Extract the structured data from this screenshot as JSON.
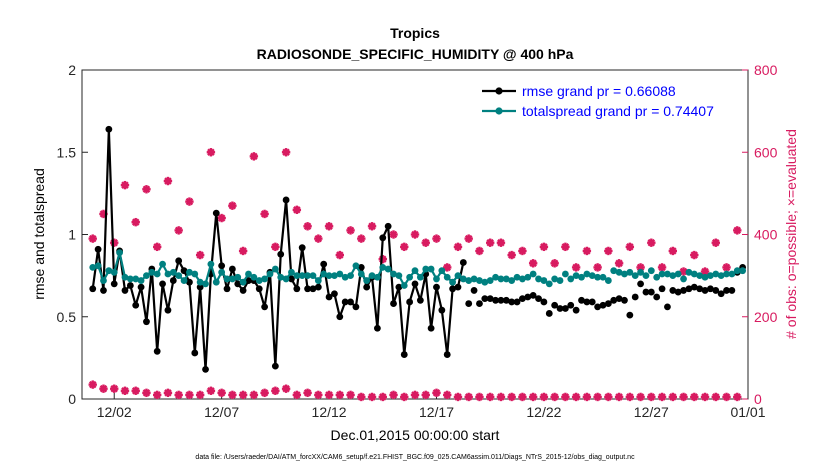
{
  "chart_data": {
    "type": "line",
    "title": "Tropics",
    "subtitle": "RADIOSONDE_SPECIFIC_HUMIDITY @ 400 hPa",
    "xlabel": "Dec.01,2015 00:00:00 start",
    "ylabel": "rmse and totalspread",
    "ylabel_right": "# of obs: o=possible; ×=evaluated",
    "footer": "data file: /Users/raeder/DAI/ATM_forcXX/CAM6_setup/f.e21.FHIST_BGC.f09_025.CAM6assim.011/Diags_NTrS_2015-12/obs_diag_output.nc",
    "xlim": [
      0.5,
      31.5
    ],
    "ylim": [
      0,
      2
    ],
    "ylim_right": [
      0,
      800
    ],
    "x_ticks": [
      {
        "x": 2,
        "label": "12/02"
      },
      {
        "x": 7,
        "label": "12/07"
      },
      {
        "x": 12,
        "label": "12/12"
      },
      {
        "x": 17,
        "label": "12/17"
      },
      {
        "x": 22,
        "label": "12/22"
      },
      {
        "x": 27,
        "label": "12/27"
      },
      {
        "x": 32,
        "label": "01/01"
      }
    ],
    "y_ticks": [
      "0",
      "0.5",
      "1",
      "1.5",
      "2"
    ],
    "y_ticks_right": [
      "0",
      "200",
      "400",
      "600",
      "800"
    ],
    "colors": {
      "rmse": "#000000",
      "spread": "#008080",
      "obs": "#d81b60",
      "legend_text": "#0000ff"
    },
    "series": [
      {
        "name": "rmse grand pr = 0.66088",
        "key": "rmse",
        "x": [
          1.0,
          1.25,
          1.5,
          1.75,
          2.0,
          2.25,
          2.5,
          2.75,
          3.0,
          3.25,
          3.5,
          3.75,
          4.0,
          4.25,
          4.5,
          4.75,
          5.0,
          5.25,
          5.5,
          5.75,
          6.0,
          6.25,
          6.5,
          6.75,
          7.0,
          7.25,
          7.5,
          7.75,
          8.0,
          8.25,
          8.5,
          8.75,
          9.0,
          9.25,
          9.5,
          9.75,
          10.0,
          10.25,
          10.5,
          10.75,
          11.0,
          11.25,
          11.5,
          11.75,
          12.0,
          12.25,
          12.5,
          12.75,
          13.0,
          13.25,
          13.5,
          13.75,
          14.0,
          14.25,
          14.5,
          14.75,
          15.0,
          15.25,
          15.5,
          15.75,
          16.0,
          16.25,
          16.5,
          16.75,
          17.0,
          17.25,
          17.5,
          17.75,
          18.0,
          18.25,
          18.5,
          18.75,
          19.0,
          19.25,
          19.5,
          19.75,
          20.0,
          20.25,
          20.5,
          20.75,
          21.0,
          21.25,
          21.5,
          21.75,
          22.0,
          22.25,
          22.5,
          22.75,
          23.0,
          23.25,
          23.5,
          23.75,
          24.0,
          24.25,
          24.5,
          24.75,
          25.0,
          25.25,
          25.5,
          25.75,
          26.0,
          26.25,
          26.5,
          26.75,
          27.0,
          27.25,
          27.5,
          27.75,
          28.0,
          28.25,
          28.5,
          28.75,
          29.0,
          29.25,
          29.5,
          29.75,
          30.0,
          30.25,
          30.5,
          30.75,
          31.0,
          31.25
        ],
        "values": [
          0.67,
          0.91,
          0.66,
          1.64,
          0.7,
          0.9,
          0.66,
          0.69,
          0.57,
          0.68,
          0.47,
          0.79,
          0.29,
          0.7,
          0.54,
          0.72,
          0.84,
          0.78,
          0.71,
          0.28,
          0.68,
          0.18,
          0.76,
          1.13,
          0.81,
          0.67,
          0.79,
          0.7,
          0.66,
          0.72,
          0.72,
          0.67,
          0.56,
          0.77,
          0.2,
          0.88,
          1.21,
          0.73,
          0.67,
          0.92,
          0.67,
          0.67,
          0.68,
          0.82,
          0.62,
          0.64,
          0.5,
          0.59,
          0.59,
          0.56,
          0.8,
          0.68,
          0.74,
          0.43,
          0.98,
          1.05,
          0.58,
          0.68,
          0.27,
          0.59,
          0.7,
          0.6,
          0.76,
          0.43,
          0.68,
          0.54,
          0.27,
          0.67,
          0.68,
          0.83,
          0.58,
          0.66,
          0.58,
          0.61,
          0.61,
          0.6,
          0.6,
          0.6,
          0.59,
          0.59,
          0.61,
          0.62,
          0.63,
          0.61,
          0.59,
          0.52,
          0.57,
          0.55,
          0.55,
          0.57,
          0.54,
          0.6,
          0.59,
          0.59,
          0.56,
          0.57,
          0.58,
          0.6,
          0.61,
          0.6,
          0.51,
          0.62,
          0.7,
          0.65,
          0.65,
          0.62,
          0.67,
          0.56,
          0.66,
          0.65,
          0.66,
          0.67,
          0.68,
          0.67,
          0.66,
          0.67,
          0.66,
          0.64,
          0.66,
          0.66,
          0.77,
          0.8
        ],
        "line_until_x": 18.25
      },
      {
        "name": "totalspread grand pr = 0.74407",
        "key": "spread",
        "x": [
          1.0,
          1.25,
          1.5,
          1.75,
          2.0,
          2.25,
          2.5,
          2.75,
          3.0,
          3.25,
          3.5,
          3.75,
          4.0,
          4.25,
          4.5,
          4.75,
          5.0,
          5.25,
          5.5,
          5.75,
          6.0,
          6.25,
          6.5,
          6.75,
          7.0,
          7.25,
          7.5,
          7.75,
          8.0,
          8.25,
          8.5,
          8.75,
          9.0,
          9.25,
          9.5,
          9.75,
          10.0,
          10.25,
          10.5,
          10.75,
          11.0,
          11.25,
          11.5,
          11.75,
          12.0,
          12.25,
          12.5,
          12.75,
          13.0,
          13.25,
          13.5,
          13.75,
          14.0,
          14.25,
          14.5,
          14.75,
          15.0,
          15.25,
          15.5,
          15.75,
          16.0,
          16.25,
          16.5,
          16.75,
          17.0,
          17.25,
          17.5,
          17.75,
          18.0,
          18.25,
          18.5,
          18.75,
          19.0,
          19.25,
          19.5,
          19.75,
          20.0,
          20.25,
          20.5,
          20.75,
          21.0,
          21.25,
          21.5,
          21.75,
          22.0,
          22.25,
          22.5,
          22.75,
          23.0,
          23.25,
          23.5,
          23.75,
          24.0,
          24.25,
          24.5,
          24.75,
          25.0,
          25.25,
          25.5,
          25.75,
          26.0,
          26.25,
          26.5,
          26.75,
          27.0,
          27.25,
          27.5,
          27.75,
          28.0,
          28.25,
          28.5,
          28.75,
          29.0,
          29.25,
          29.5,
          29.75,
          30.0,
          30.25,
          30.5,
          30.75,
          31.0,
          31.25
        ],
        "values": [
          0.8,
          0.81,
          0.72,
          0.78,
          0.77,
          0.89,
          0.74,
          0.73,
          0.73,
          0.72,
          0.75,
          0.77,
          0.76,
          0.82,
          0.76,
          0.77,
          0.75,
          0.72,
          0.77,
          0.76,
          0.71,
          0.7,
          0.82,
          0.71,
          0.77,
          0.73,
          0.73,
          0.74,
          0.71,
          0.76,
          0.74,
          0.72,
          0.73,
          0.76,
          0.79,
          0.74,
          0.73,
          0.77,
          0.75,
          0.75,
          0.75,
          0.75,
          0.72,
          0.76,
          0.75,
          0.75,
          0.76,
          0.74,
          0.75,
          0.81,
          0.76,
          0.72,
          0.75,
          0.74,
          0.8,
          0.79,
          0.76,
          0.75,
          0.69,
          0.74,
          0.78,
          0.74,
          0.79,
          0.79,
          0.73,
          0.78,
          0.74,
          0.71,
          0.75,
          0.73,
          0.72,
          0.73,
          0.72,
          0.71,
          0.72,
          0.74,
          0.73,
          0.73,
          0.72,
          0.74,
          0.73,
          0.74,
          0.76,
          0.73,
          0.72,
          0.7,
          0.73,
          0.72,
          0.76,
          0.73,
          0.75,
          0.74,
          0.76,
          0.75,
          0.74,
          0.74,
          0.72,
          0.78,
          0.77,
          0.76,
          0.77,
          0.75,
          0.77,
          0.75,
          0.78,
          0.74,
          0.76,
          0.76,
          0.75,
          0.76,
          0.73,
          0.77,
          0.76,
          0.75,
          0.74,
          0.75,
          0.76,
          0.75,
          0.76,
          0.76,
          0.78,
          0.78
        ],
        "line_until_x": 18.25
      }
    ],
    "obs_possible": {
      "name": "possible",
      "x": [
        1.0,
        1.5,
        2.0,
        2.5,
        3.0,
        3.5,
        4.0,
        4.5,
        5.0,
        5.5,
        6.0,
        6.5,
        7.0,
        7.5,
        8.0,
        8.5,
        9.0,
        9.5,
        10.0,
        10.5,
        11.0,
        11.5,
        12.0,
        12.5,
        13.0,
        13.5,
        14.0,
        14.5,
        15.0,
        15.5,
        16.0,
        16.5,
        17.0,
        17.5,
        18.0,
        18.5,
        19.0,
        19.5,
        20.0,
        20.5,
        21.0,
        21.5,
        22.0,
        22.5,
        23.0,
        23.5,
        24.0,
        24.5,
        25.0,
        25.5,
        26.0,
        26.5,
        27.0,
        27.5,
        28.0,
        28.5,
        29.0,
        29.5,
        30.0,
        30.5,
        31.0
      ],
      "values": [
        390,
        450,
        380,
        520,
        430,
        510,
        370,
        530,
        410,
        480,
        350,
        600,
        440,
        470,
        360,
        590,
        450,
        370,
        600,
        460,
        420,
        390,
        420,
        350,
        410,
        390,
        420,
        340,
        400,
        370,
        400,
        380,
        390,
        320,
        370,
        390,
        360,
        380,
        380,
        350,
        360,
        330,
        370,
        330,
        370,
        320,
        360,
        320,
        360,
        330,
        370,
        320,
        380,
        320,
        360,
        310,
        350,
        310,
        380,
        320,
        410
      ],
      "evaluated": [
        35,
        25,
        25,
        20,
        20,
        15,
        10,
        15,
        10,
        10,
        10,
        20,
        15,
        10,
        10,
        10,
        15,
        20,
        25,
        10,
        15,
        10,
        10,
        10,
        10,
        5,
        5,
        5,
        10,
        5,
        10,
        10,
        15,
        10,
        5,
        5,
        5,
        5,
        5,
        5,
        5,
        5,
        5,
        5,
        5,
        5,
        5,
        5,
        5,
        5,
        5,
        5,
        5,
        5,
        5,
        5,
        5,
        5,
        5,
        5,
        5
      ]
    }
  }
}
